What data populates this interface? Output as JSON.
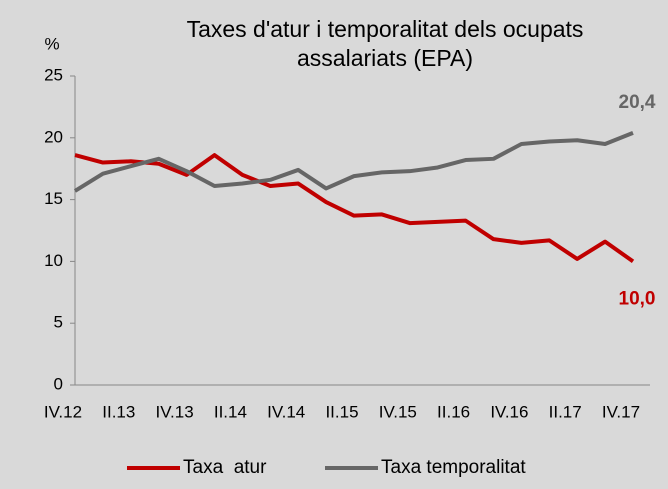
{
  "chart_data": {
    "type": "line",
    "title": [
      "Taxes d'atur i temporalitat dels ocupats",
      "assalariats (EPA)"
    ],
    "y_label": "%",
    "categories": [
      "IV.12",
      null,
      "II.13",
      null,
      "IV.13",
      null,
      "II.14",
      null,
      "IV.14",
      null,
      "II.15",
      null,
      "IV.15",
      null,
      "II.16",
      null,
      "IV.16",
      null,
      "II.17",
      null,
      "IV.17"
    ],
    "series": [
      {
        "name": "Taxa  atur",
        "color": "#c00000",
        "values": [
          18.6,
          18.0,
          18.1,
          17.9,
          17.0,
          18.6,
          17.0,
          16.1,
          16.3,
          14.8,
          13.7,
          13.8,
          13.1,
          13.2,
          13.3,
          11.8,
          11.5,
          11.7,
          10.2,
          11.6,
          10.0
        ],
        "value_labels": [
          null,
          null,
          null,
          null,
          null,
          null,
          null,
          null,
          null,
          null,
          null,
          null,
          null,
          null,
          null,
          null,
          null,
          null,
          null,
          null,
          "10,0"
        ]
      },
      {
        "name": "Taxa temporalitat",
        "color": "#666666",
        "values": [
          15.7,
          17.1,
          17.7,
          18.3,
          17.3,
          16.1,
          16.3,
          16.6,
          17.4,
          15.9,
          16.9,
          17.2,
          17.3,
          17.6,
          18.2,
          18.3,
          19.5,
          19.7,
          19.8,
          19.5,
          20.4
        ],
        "value_labels": [
          null,
          null,
          null,
          null,
          null,
          null,
          null,
          null,
          null,
          null,
          null,
          null,
          null,
          null,
          null,
          null,
          null,
          null,
          null,
          null,
          "20,4"
        ]
      }
    ],
    "ylim": [
      0,
      25
    ],
    "yticks": [
      0,
      5,
      10,
      15,
      20,
      25
    ],
    "grid": false,
    "legend": "bottom"
  }
}
